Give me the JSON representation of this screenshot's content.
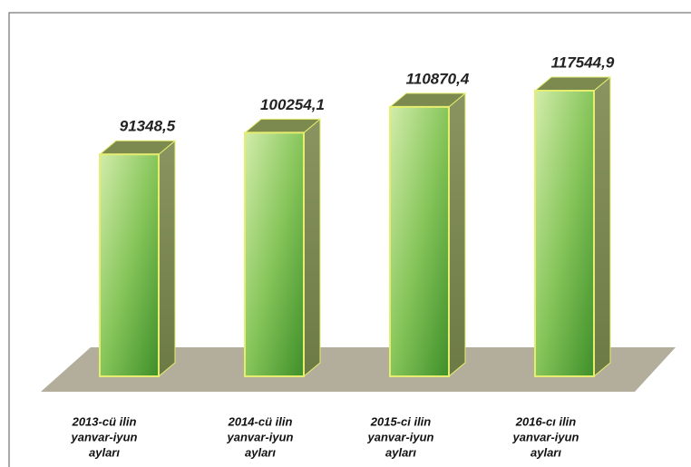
{
  "chart_data": {
    "type": "bar3d",
    "categories": [
      [
        "2013-cü ilin",
        "yanvar-iyun",
        "ayları"
      ],
      [
        "2014-cü ilin",
        "yanvar-iyun",
        "ayları"
      ],
      [
        "2015-ci ilin",
        "yanvar-iyun",
        "ayları"
      ],
      [
        "2016-cı ilin",
        "yanvar-iyun",
        "ayları"
      ]
    ],
    "values": [
      91348.5,
      100254.1,
      110870.4,
      117544.9
    ],
    "value_labels": [
      "91348,5",
      "100254,1",
      "110870,4",
      "117544,9"
    ],
    "color": "#7dbf4e"
  }
}
